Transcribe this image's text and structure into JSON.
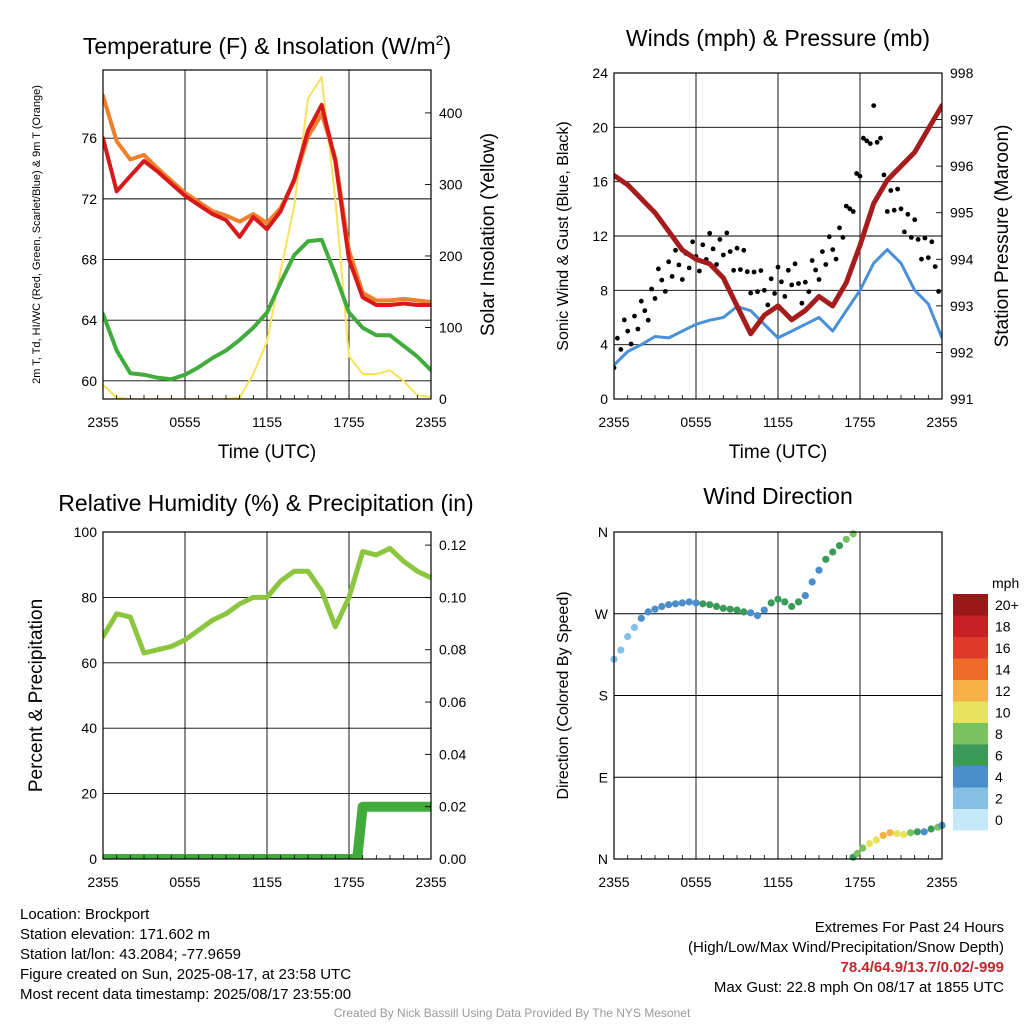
{
  "chart_data": [
    {
      "type": "line",
      "title": "Temperature (F) & Insolation (W/m²)",
      "xlabel": "Time (UTC)",
      "ylabel": "2m T, Td, HI/WC (Red, Green, Scarlet/Blue) & 9m T (Orange)",
      "ylabel_right": "Solar Insolation (Yellow)",
      "x_ticks": [
        "2355",
        "0555",
        "1155",
        "1755",
        "2355"
      ],
      "ylim": [
        58.8,
        80.5
      ],
      "y_ticks": [
        60,
        64,
        68,
        72,
        76
      ],
      "ylim_right": [
        0,
        460
      ],
      "y_ticks_right": [
        0,
        100,
        200,
        300,
        400
      ],
      "x_hours": [
        0,
        1,
        2,
        3,
        4,
        5,
        6,
        7,
        8,
        9,
        10,
        11,
        12,
        13,
        14,
        15,
        16,
        17,
        18,
        19,
        20,
        21,
        22,
        23,
        24
      ],
      "series": [
        {
          "name": "2m T",
          "color": "#d7191c",
          "axis": "left",
          "values": [
            76.0,
            72.5,
            73.5,
            74.5,
            73.8,
            73.0,
            72.2,
            71.6,
            71.0,
            70.6,
            69.5,
            70.8,
            70.0,
            71.2,
            73.3,
            76.5,
            78.2,
            74.5,
            68.0,
            65.5,
            65.0,
            65.0,
            65.1,
            65.0,
            65.0
          ]
        },
        {
          "name": "9m T",
          "color": "#f07f2b",
          "axis": "left",
          "values": [
            78.8,
            75.8,
            74.6,
            74.9,
            74.0,
            73.2,
            72.4,
            71.8,
            71.2,
            70.9,
            70.5,
            71.0,
            70.4,
            71.4,
            73.2,
            76.1,
            77.6,
            74.7,
            68.6,
            65.8,
            65.3,
            65.3,
            65.4,
            65.3,
            65.2
          ]
        },
        {
          "name": "Td",
          "color": "#41ab3c",
          "axis": "left",
          "values": [
            64.4,
            62.0,
            60.5,
            60.4,
            60.2,
            60.1,
            60.4,
            60.9,
            61.5,
            62.0,
            62.7,
            63.5,
            64.5,
            66.5,
            68.3,
            69.2,
            69.3,
            67.0,
            64.5,
            63.5,
            63.0,
            63.0,
            62.3,
            61.6,
            60.7
          ]
        },
        {
          "name": "Solar Insolation",
          "color": "#fbe15a",
          "axis": "right",
          "values": [
            20,
            2,
            0,
            0,
            0,
            0,
            0,
            0,
            0,
            0,
            2,
            35,
            80,
            180,
            270,
            420,
            450,
            280,
            60,
            35,
            35,
            40,
            25,
            5,
            3
          ]
        }
      ]
    },
    {
      "type": "line",
      "title": "Winds (mph) & Pressure (mb)",
      "xlabel": "Time (UTC)",
      "ylabel": "Sonic Wind & Gust (Blue, Black)",
      "ylabel_right": "Station Pressure (Maroon)",
      "x_ticks": [
        "2355",
        "0555",
        "1155",
        "1755",
        "2355"
      ],
      "ylim": [
        0,
        24
      ],
      "y_ticks": [
        0,
        4,
        8,
        12,
        16,
        20,
        24
      ],
      "ylim_right": [
        991,
        998
      ],
      "y_ticks_right": [
        991,
        992,
        993,
        994,
        995,
        996,
        997,
        998
      ],
      "max_gust_hour": 19.0,
      "x_hours": [
        0,
        1,
        2,
        3,
        4,
        5,
        6,
        7,
        8,
        9,
        10,
        11,
        12,
        13,
        14,
        15,
        16,
        17,
        18,
        19,
        20,
        21,
        22,
        23,
        24
      ],
      "series": [
        {
          "name": "Sonic Wind",
          "color": "#4a90d9",
          "axis": "left",
          "values": [
            2.5,
            3.5,
            4.0,
            4.6,
            4.5,
            5.0,
            5.5,
            5.8,
            6.0,
            6.8,
            6.5,
            5.5,
            4.5,
            5.0,
            5.5,
            6.0,
            5.0,
            6.5,
            8.0,
            10.0,
            11.0,
            10.0,
            8.0,
            7.0,
            4.5
          ]
        },
        {
          "name": "Gust",
          "color": "#000000",
          "axis": "left",
          "values": [
            3.5,
            5.0,
            6.0,
            8.0,
            9.5,
            10.0,
            10.5,
            11.0,
            11.2,
            10.5,
            9.0,
            8.0,
            8.5,
            9.0,
            8.0,
            10.0,
            11.0,
            13.0,
            17.0,
            21.0,
            15.0,
            14.0,
            12.0,
            11.0,
            8.5
          ]
        },
        {
          "name": "Station Pressure",
          "color": "#a61c1c",
          "axis": "right",
          "values": [
            995.8,
            995.6,
            995.3,
            995.0,
            994.6,
            994.2,
            994.0,
            993.9,
            993.6,
            993.0,
            992.4,
            992.8,
            993.0,
            992.7,
            992.9,
            993.2,
            993.0,
            993.5,
            994.3,
            995.2,
            995.7,
            996.0,
            996.3,
            996.8,
            997.3
          ]
        }
      ]
    },
    {
      "type": "line",
      "title": "Relative Humidity (%) & Precipitation (in)",
      "ylabel": "Percent & Precipitation",
      "x_ticks": [
        "2355",
        "0555",
        "1155",
        "1755",
        "2355"
      ],
      "ylim": [
        0,
        100
      ],
      "y_ticks": [
        0,
        20,
        40,
        60,
        80,
        100
      ],
      "ylim_right": [
        0,
        0.125
      ],
      "y_ticks_right": [
        "0.00",
        "0.02",
        "0.04",
        "0.06",
        "0.08",
        "0.10",
        "0.12"
      ],
      "x_hours": [
        0,
        1,
        2,
        3,
        4,
        5,
        6,
        7,
        8,
        9,
        10,
        11,
        12,
        13,
        14,
        15,
        16,
        17,
        18,
        19,
        20,
        21,
        22,
        23,
        24
      ],
      "series": [
        {
          "name": "Relative Humidity",
          "color": "#8cc63f",
          "axis": "left",
          "values": [
            68,
            75,
            74,
            63,
            64,
            65,
            67,
            70,
            73,
            75,
            78,
            80,
            80,
            85,
            88,
            88,
            82,
            71,
            80,
            94,
            93,
            95,
            91,
            88,
            86
          ]
        },
        {
          "name": "Precipitation",
          "color": "#41ab3c",
          "axis": "right",
          "values": [
            0,
            0,
            0,
            0,
            0,
            0,
            0,
            0,
            0,
            0,
            0,
            0,
            0,
            0,
            0,
            0,
            0,
            0,
            0,
            0.02,
            0.02,
            0.02,
            0.02,
            0.02,
            0.02
          ]
        }
      ]
    },
    {
      "type": "scatter",
      "title": "Wind Direction",
      "ylabel": "Direction (Colored By Speed)",
      "x_ticks": [
        "2355",
        "0555",
        "1155",
        "1755",
        "2355"
      ],
      "y_ticks": [
        "N",
        "E",
        "S",
        "W",
        "N"
      ],
      "ylim_degrees": [
        0,
        360
      ],
      "colorbar_label": "mph",
      "colorbar_ticks": [
        "0",
        "2",
        "4",
        "6",
        "8",
        "10",
        "12",
        "14",
        "16",
        "18",
        "20+"
      ],
      "colorbar_colors": [
        "#c6e9f9",
        "#86bfe6",
        "#4a8ecb",
        "#3a9a5a",
        "#79c25d",
        "#e8e35c",
        "#f7b147",
        "#ef6b2a",
        "#df3a2a",
        "#c61f24",
        "#9b1818"
      ],
      "points": [
        {
          "hour": 0.0,
          "dir": 220,
          "speed": 3
        },
        {
          "hour": 0.5,
          "dir": 230,
          "speed": 3
        },
        {
          "hour": 1.0,
          "dir": 245,
          "speed": 2
        },
        {
          "hour": 1.5,
          "dir": 255,
          "speed": 3
        },
        {
          "hour": 2.0,
          "dir": 265,
          "speed": 4
        },
        {
          "hour": 2.5,
          "dir": 272,
          "speed": 4
        },
        {
          "hour": 3.0,
          "dir": 275,
          "speed": 4
        },
        {
          "hour": 3.5,
          "dir": 278,
          "speed": 4
        },
        {
          "hour": 4.0,
          "dir": 280,
          "speed": 4
        },
        {
          "hour": 4.5,
          "dir": 281,
          "speed": 5
        },
        {
          "hour": 5.0,
          "dir": 282,
          "speed": 4
        },
        {
          "hour": 5.5,
          "dir": 283,
          "speed": 5
        },
        {
          "hour": 6.0,
          "dir": 282,
          "speed": 5
        },
        {
          "hour": 6.5,
          "dir": 281,
          "speed": 6
        },
        {
          "hour": 7.0,
          "dir": 280,
          "speed": 6
        },
        {
          "hour": 7.5,
          "dir": 278,
          "speed": 6
        },
        {
          "hour": 8.0,
          "dir": 276,
          "speed": 7
        },
        {
          "hour": 8.5,
          "dir": 275,
          "speed": 6
        },
        {
          "hour": 9.0,
          "dir": 274,
          "speed": 6
        },
        {
          "hour": 9.5,
          "dir": 272,
          "speed": 6
        },
        {
          "hour": 10.0,
          "dir": 271,
          "speed": 5
        },
        {
          "hour": 10.5,
          "dir": 268,
          "speed": 4
        },
        {
          "hour": 11.0,
          "dir": 274,
          "speed": 4
        },
        {
          "hour": 11.5,
          "dir": 282,
          "speed": 6
        },
        {
          "hour": 12.0,
          "dir": 286,
          "speed": 6
        },
        {
          "hour": 12.5,
          "dir": 283,
          "speed": 7
        },
        {
          "hour": 13.0,
          "dir": 278,
          "speed": 6
        },
        {
          "hour": 13.5,
          "dir": 283,
          "speed": 7
        },
        {
          "hour": 14.0,
          "dir": 290,
          "speed": 5
        },
        {
          "hour": 14.5,
          "dir": 305,
          "speed": 5
        },
        {
          "hour": 15.0,
          "dir": 318,
          "speed": 5
        },
        {
          "hour": 15.5,
          "dir": 330,
          "speed": 6
        },
        {
          "hour": 16.0,
          "dir": 338,
          "speed": 7
        },
        {
          "hour": 16.5,
          "dir": 345,
          "speed": 6
        },
        {
          "hour": 17.0,
          "dir": 352,
          "speed": 8
        },
        {
          "hour": 17.5,
          "dir": 358,
          "speed": 9
        },
        {
          "hour": 17.5,
          "dir": 2,
          "speed": 7
        },
        {
          "hour": 17.8,
          "dir": 6,
          "speed": 8
        },
        {
          "hour": 18.2,
          "dir": 12,
          "speed": 9
        },
        {
          "hour": 18.7,
          "dir": 17,
          "speed": 10
        },
        {
          "hour": 19.2,
          "dir": 21,
          "speed": 11
        },
        {
          "hour": 19.7,
          "dir": 26,
          "speed": 12
        },
        {
          "hour": 20.2,
          "dir": 29,
          "speed": 13
        },
        {
          "hour": 20.7,
          "dir": 28,
          "speed": 11
        },
        {
          "hour": 21.2,
          "dir": 27,
          "speed": 10
        },
        {
          "hour": 21.7,
          "dir": 29,
          "speed": 8
        },
        {
          "hour": 22.2,
          "dir": 30,
          "speed": 6
        },
        {
          "hour": 22.7,
          "dir": 30,
          "speed": 5
        },
        {
          "hour": 23.2,
          "dir": 33,
          "speed": 6
        },
        {
          "hour": 23.7,
          "dir": 35,
          "speed": 9
        },
        {
          "hour": 24.0,
          "dir": 37,
          "speed": 4
        }
      ]
    }
  ],
  "info": {
    "location": "Location: Brockport",
    "elevation": "Station elevation: 171.602 m",
    "latlon": "Station lat/lon: 43.2084; -77.9659",
    "created": "Figure created on Sun, 2025-08-17, at 23:58 UTC",
    "recent": "Most recent data timestamp: 2025/08/17 23:55:00"
  },
  "extremes": {
    "title": "Extremes For Past 24 Hours",
    "subtitle": "(High/Low/Max Wind/Precipitation/Snow Depth)",
    "values": "78.4/64.9/13.7/0.02/-999",
    "max_gust": "Max Gust: 22.8 mph On 08/17 at 1855 UTC"
  },
  "credit": "Created By Nick Bassill Using Data Provided By The NYS Mesonet"
}
